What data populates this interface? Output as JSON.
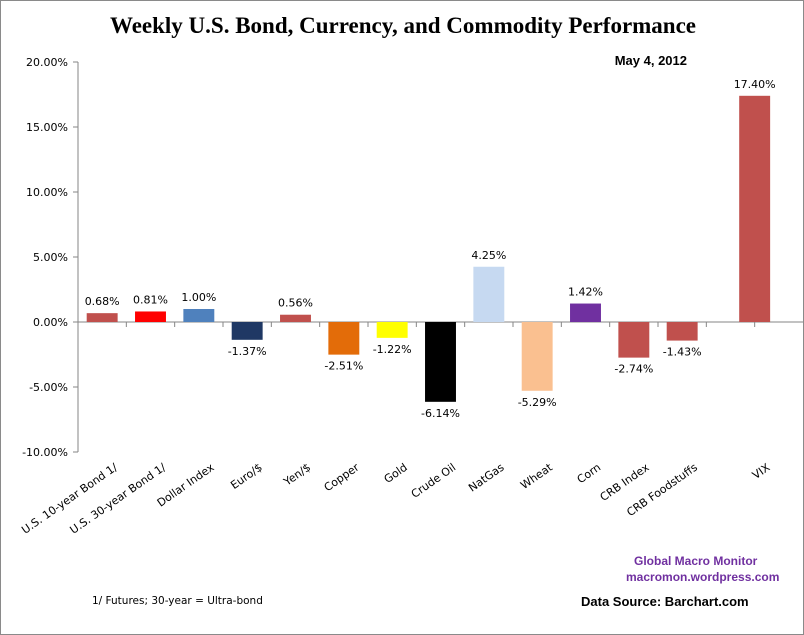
{
  "chart_data": {
    "type": "bar",
    "title": "Weekly U.S. Bond, Currency, and Commodity Performance",
    "subtitle": "May 4, 2012",
    "xlabel": "",
    "ylabel": "",
    "ylim": [
      -10,
      20
    ],
    "yticks": [
      20,
      15,
      10,
      5,
      0,
      -5,
      -10
    ],
    "ytick_labels": [
      "20.00%",
      "15.00%",
      "10.00%",
      "5.00%",
      "0.00%",
      "-5.00%",
      "-10.00%"
    ],
    "grid": false,
    "legend": "none",
    "categories": [
      "U.S. 10-year Bond 1/",
      "U.S. 30-year Bond 1/",
      "Dollar Index",
      "Euro/$",
      "Yen/$",
      "Copper",
      "Gold",
      "Crude Oil",
      "NatGas",
      "Wheat",
      "Corn",
      "CRB Index",
      "CRB Foodstuffs",
      "VIX"
    ],
    "values": [
      0.68,
      0.81,
      1.0,
      -1.37,
      0.56,
      -2.51,
      -1.22,
      -6.14,
      4.25,
      -5.29,
      1.42,
      -2.74,
      -1.43,
      17.4
    ],
    "data_labels": [
      "0.68%",
      "0.81%",
      "1.00%",
      "-1.37%",
      "0.56%",
      "-2.51%",
      "-1.22%",
      "-6.14%",
      "4.25%",
      "-5.29%",
      "1.42%",
      "-2.74%",
      "-1.43%",
      "17.40%"
    ],
    "colors": [
      "#c0504d",
      "#ff0000",
      "#4f81bd",
      "#1f3864",
      "#c0504d",
      "#e36c09",
      "#ffff00",
      "#000000",
      "#c6d9f1",
      "#fac090",
      "#7030a0",
      "#c0504d",
      "#c0504d",
      "#c0504d"
    ]
  },
  "annotations": {
    "credit_line1": "Global  Macro  Monitor",
    "credit_line2": "macromon.wordpress.com",
    "data_source": "Data Source:  Barchart.com",
    "footnote": "1/  Futures; 30-year = Ultra-bond"
  }
}
